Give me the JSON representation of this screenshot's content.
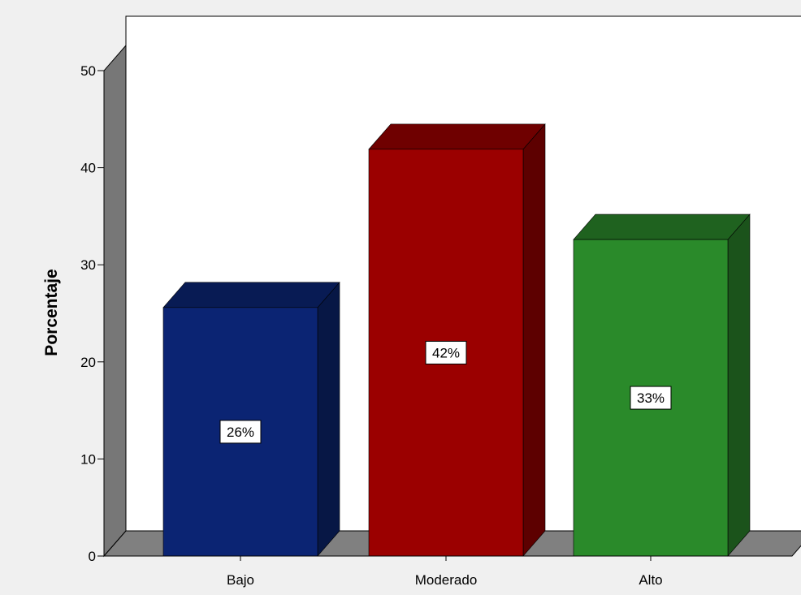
{
  "chart_data": {
    "type": "bar",
    "title": "",
    "xlabel": "",
    "ylabel": "Porcentaje",
    "categories": [
      "Bajo",
      "Moderado",
      "Alto"
    ],
    "values": [
      25.6,
      41.9,
      32.6
    ],
    "value_labels": [
      "26%",
      "42%",
      "33%"
    ],
    "ylim": [
      0,
      50
    ],
    "yticks": [
      0,
      10,
      20,
      30,
      40,
      50
    ],
    "grid": false,
    "legend": "none",
    "style": "3d-bar",
    "bar_colors": [
      "#0b2473",
      "#9b0000",
      "#2a8a2a"
    ],
    "bar_side_colors": [
      "#071745",
      "#5d0000",
      "#1b531b"
    ],
    "bar_top_colors": [
      "#081b54",
      "#6f0000",
      "#1f621f"
    ],
    "plot_background": "#ffffff",
    "floor_color": "#808080",
    "page_background": "#f0f0f0"
  }
}
